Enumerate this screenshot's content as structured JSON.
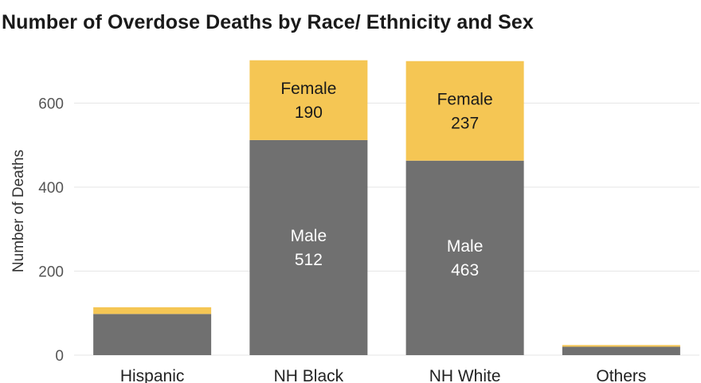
{
  "chart_data": {
    "type": "bar",
    "stacked": true,
    "title": "Number of Overdose Deaths by Race/ Ethnicity and Sex",
    "xlabel": "",
    "ylabel": "Number of Deaths",
    "categories": [
      "Hispanic",
      "NH Black",
      "NH White",
      "Others"
    ],
    "yticks": [
      0,
      200,
      400,
      600
    ],
    "ylim": [
      0,
      760
    ],
    "grid": true,
    "series": [
      {
        "name": "Male",
        "color": "#707070",
        "values": [
          98,
          512,
          463,
          20
        ],
        "labels": [
          null,
          "Male\n512",
          "Male\n463",
          null
        ],
        "label_color": "#ffffff"
      },
      {
        "name": "Female",
        "color": "#f5c654",
        "values": [
          16,
          190,
          237,
          4
        ],
        "labels": [
          null,
          "Female\n190",
          "Female\n237",
          null
        ],
        "label_color": "#1a1a1a"
      }
    ]
  }
}
